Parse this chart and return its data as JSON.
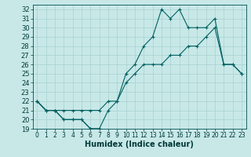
{
  "xlabel": "Humidex (Indice chaleur)",
  "bg_color": "#c8e8e8",
  "line_color": "#006060",
  "grid_color": "#a8d0d0",
  "x": [
    0,
    1,
    2,
    3,
    4,
    5,
    6,
    7,
    8,
    9,
    10,
    11,
    12,
    13,
    14,
    15,
    16,
    17,
    18,
    19,
    20,
    21,
    22,
    23
  ],
  "line_top": [
    22,
    21,
    21,
    20,
    20,
    20,
    19,
    19,
    21,
    22,
    25,
    26,
    28,
    29,
    32,
    31,
    32,
    30,
    30,
    30,
    31,
    26,
    26,
    25
  ],
  "line_mid": [
    22,
    21,
    21,
    21,
    21,
    21,
    21,
    21,
    22,
    22,
    24,
    25,
    26,
    26,
    26,
    27,
    27,
    28,
    28,
    29,
    30,
    26,
    26,
    25
  ],
  "line_bot": [
    22,
    21,
    21,
    20,
    20,
    20,
    19,
    19,
    null,
    null,
    null,
    null,
    null,
    null,
    null,
    null,
    null,
    null,
    null,
    null,
    null,
    null,
    null,
    null
  ],
  "ylim": [
    19,
    32.5
  ],
  "xlim": [
    -0.5,
    23.5
  ],
  "yticks": [
    19,
    20,
    21,
    22,
    23,
    24,
    25,
    26,
    27,
    28,
    29,
    30,
    31,
    32
  ],
  "xticks": [
    0,
    1,
    2,
    3,
    4,
    5,
    6,
    7,
    8,
    9,
    10,
    11,
    12,
    13,
    14,
    15,
    16,
    17,
    18,
    19,
    20,
    21,
    22,
    23
  ],
  "tick_fontsize": 6,
  "xlabel_fontsize": 7
}
